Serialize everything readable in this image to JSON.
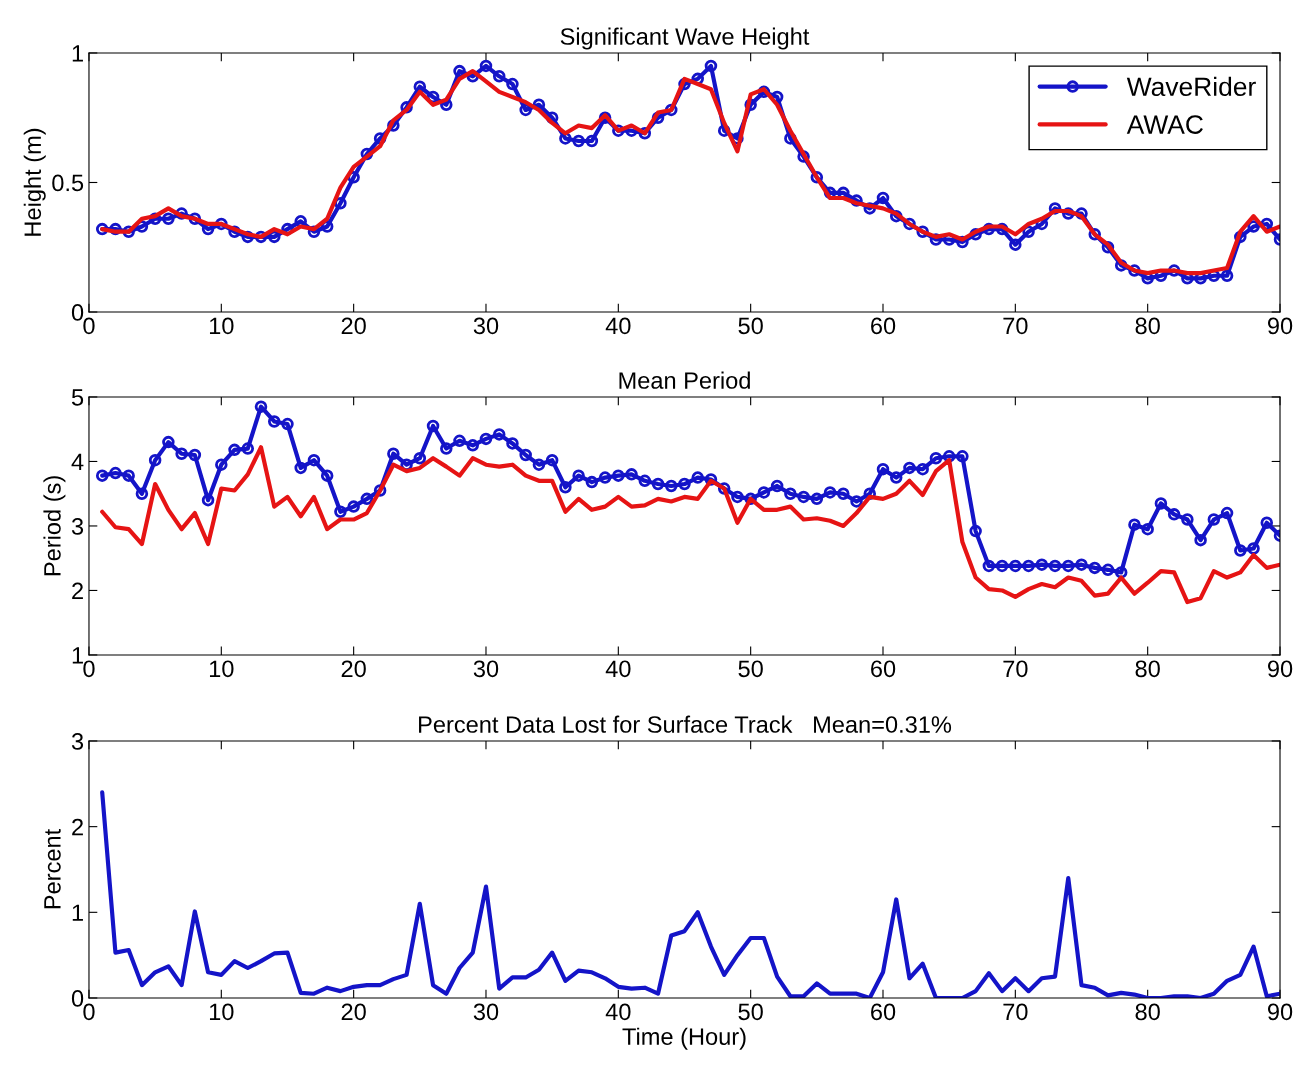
{
  "chart_data": [
    {
      "type": "line",
      "title": "Significant Wave Height",
      "ylabel": "Height (m)",
      "xlim": [
        0,
        90
      ],
      "xticks": [
        0,
        10,
        20,
        30,
        40,
        50,
        60,
        70,
        80,
        90
      ],
      "ylim": [
        0,
        1
      ],
      "yticks": [
        0,
        0.5,
        1
      ],
      "legend": "top right",
      "x": [
        1,
        2,
        3,
        4,
        5,
        6,
        7,
        8,
        9,
        10,
        11,
        12,
        13,
        14,
        15,
        16,
        17,
        18,
        19,
        20,
        21,
        22,
        23,
        24,
        25,
        26,
        27,
        28,
        29,
        30,
        31,
        32,
        33,
        34,
        35,
        36,
        37,
        38,
        39,
        40,
        41,
        42,
        43,
        44,
        45,
        46,
        47,
        48,
        49,
        50,
        51,
        52,
        53,
        54,
        55,
        56,
        57,
        58,
        59,
        60,
        61,
        62,
        63,
        64,
        65,
        66,
        67,
        68,
        69,
        70,
        71,
        72,
        73,
        74,
        75,
        76,
        77,
        78,
        79,
        80,
        81,
        82,
        83,
        84,
        85,
        86,
        87,
        88,
        89,
        90
      ],
      "series": [
        {
          "name": "WaveRider",
          "color": "#1414c8",
          "marker": "circle",
          "values": [
            0.32,
            0.32,
            0.31,
            0.33,
            0.36,
            0.36,
            0.38,
            0.36,
            0.32,
            0.34,
            0.31,
            0.29,
            0.29,
            0.29,
            0.32,
            0.35,
            0.31,
            0.33,
            0.42,
            0.52,
            0.61,
            0.67,
            0.72,
            0.79,
            0.87,
            0.83,
            0.8,
            0.93,
            0.91,
            0.95,
            0.91,
            0.88,
            0.78,
            0.8,
            0.75,
            0.67,
            0.66,
            0.66,
            0.75,
            0.7,
            0.7,
            0.69,
            0.75,
            0.78,
            0.88,
            0.9,
            0.95,
            0.7,
            0.67,
            0.8,
            0.85,
            0.83,
            0.67,
            0.6,
            0.52,
            0.46,
            0.46,
            0.43,
            0.4,
            0.44,
            0.37,
            0.34,
            0.31,
            0.28,
            0.28,
            0.27,
            0.3,
            0.32,
            0.32,
            0.26,
            0.31,
            0.34,
            0.4,
            0.38,
            0.38,
            0.3,
            0.25,
            0.18,
            0.16,
            0.13,
            0.14,
            0.16,
            0.13,
            0.13,
            0.14,
            0.14,
            0.29,
            0.33,
            0.34,
            0.28
          ]
        },
        {
          "name": "AWAC",
          "color": "#e61414",
          "marker": "none",
          "values": [
            0.32,
            0.31,
            0.31,
            0.36,
            0.37,
            0.4,
            0.37,
            0.36,
            0.34,
            0.34,
            0.32,
            0.3,
            0.29,
            0.32,
            0.3,
            0.33,
            0.32,
            0.36,
            0.48,
            0.56,
            0.6,
            0.64,
            0.74,
            0.78,
            0.85,
            0.8,
            0.82,
            0.9,
            0.93,
            0.89,
            0.85,
            0.83,
            0.81,
            0.78,
            0.73,
            0.69,
            0.72,
            0.71,
            0.76,
            0.7,
            0.72,
            0.69,
            0.77,
            0.78,
            0.9,
            0.88,
            0.86,
            0.73,
            0.62,
            0.84,
            0.86,
            0.8,
            0.7,
            0.61,
            0.52,
            0.44,
            0.44,
            0.42,
            0.41,
            0.4,
            0.38,
            0.34,
            0.31,
            0.29,
            0.3,
            0.28,
            0.31,
            0.33,
            0.33,
            0.3,
            0.34,
            0.36,
            0.39,
            0.39,
            0.37,
            0.3,
            0.26,
            0.19,
            0.16,
            0.15,
            0.16,
            0.16,
            0.15,
            0.15,
            0.16,
            0.17,
            0.31,
            0.37,
            0.31,
            0.33
          ]
        }
      ]
    },
    {
      "type": "line",
      "title": "Mean Period",
      "ylabel": "Period (s)",
      "xlim": [
        0,
        90
      ],
      "xticks": [
        0,
        10,
        20,
        30,
        40,
        50,
        60,
        70,
        80,
        90
      ],
      "ylim": [
        1,
        5
      ],
      "yticks": [
        1,
        2,
        3,
        4,
        5
      ],
      "x": [
        1,
        2,
        3,
        4,
        5,
        6,
        7,
        8,
        9,
        10,
        11,
        12,
        13,
        14,
        15,
        16,
        17,
        18,
        19,
        20,
        21,
        22,
        23,
        24,
        25,
        26,
        27,
        28,
        29,
        30,
        31,
        32,
        33,
        34,
        35,
        36,
        37,
        38,
        39,
        40,
        41,
        42,
        43,
        44,
        45,
        46,
        47,
        48,
        49,
        50,
        51,
        52,
        53,
        54,
        55,
        56,
        57,
        58,
        59,
        60,
        61,
        62,
        63,
        64,
        65,
        66,
        67,
        68,
        69,
        70,
        71,
        72,
        73,
        74,
        75,
        76,
        77,
        78,
        79,
        80,
        81,
        82,
        83,
        84,
        85,
        86,
        87,
        88,
        89,
        90
      ],
      "series": [
        {
          "color": "#1414c8",
          "marker": "circle",
          "values": [
            3.78,
            3.82,
            3.78,
            3.5,
            4.02,
            4.3,
            4.12,
            4.1,
            3.4,
            3.95,
            4.18,
            4.2,
            4.85,
            4.62,
            4.58,
            3.9,
            4.02,
            3.78,
            3.22,
            3.3,
            3.42,
            3.55,
            4.12,
            3.95,
            4.05,
            4.55,
            4.2,
            4.32,
            4.25,
            4.35,
            4.42,
            4.28,
            4.1,
            3.95,
            4.02,
            3.6,
            3.78,
            3.68,
            3.75,
            3.78,
            3.8,
            3.7,
            3.65,
            3.62,
            3.65,
            3.75,
            3.72,
            3.58,
            3.45,
            3.42,
            3.52,
            3.62,
            3.5,
            3.45,
            3.42,
            3.52,
            3.5,
            3.38,
            3.5,
            3.88,
            3.75,
            3.9,
            3.88,
            4.05,
            4.08,
            4.08,
            2.92,
            2.38,
            2.38,
            2.38,
            2.38,
            2.4,
            2.38,
            2.38,
            2.4,
            2.35,
            2.32,
            2.28,
            3.02,
            2.95,
            3.35,
            3.18,
            3.1,
            2.78,
            3.1,
            3.2,
            2.62,
            2.65,
            3.05,
            2.85
          ]
        },
        {
          "color": "#e61414",
          "marker": "none",
          "values": [
            3.22,
            2.98,
            2.95,
            2.72,
            3.65,
            3.25,
            2.95,
            3.2,
            2.72,
            3.58,
            3.55,
            3.8,
            4.22,
            3.3,
            3.45,
            3.15,
            3.45,
            2.95,
            3.1,
            3.1,
            3.2,
            3.55,
            3.95,
            3.85,
            3.9,
            4.05,
            3.92,
            3.78,
            4.05,
            3.95,
            3.92,
            3.95,
            3.78,
            3.7,
            3.7,
            3.22,
            3.42,
            3.25,
            3.3,
            3.45,
            3.3,
            3.32,
            3.42,
            3.38,
            3.45,
            3.42,
            3.7,
            3.58,
            3.05,
            3.42,
            3.25,
            3.25,
            3.3,
            3.1,
            3.12,
            3.08,
            3.0,
            3.2,
            3.45,
            3.42,
            3.5,
            3.7,
            3.48,
            3.85,
            4.02,
            2.75,
            2.2,
            2.02,
            2.0,
            1.9,
            2.02,
            2.1,
            2.05,
            2.2,
            2.15,
            1.92,
            1.95,
            2.2,
            1.95,
            2.12,
            2.3,
            2.28,
            1.82,
            1.88,
            2.3,
            2.2,
            2.28,
            2.55,
            2.35,
            2.4
          ]
        }
      ]
    },
    {
      "type": "line",
      "title": "Percent Data Lost for Surface Track   Mean=0.31%",
      "xlabel": "Time (Hour)",
      "ylabel": "Percent",
      "xlim": [
        0,
        90
      ],
      "xticks": [
        0,
        10,
        20,
        30,
        40,
        50,
        60,
        70,
        80,
        90
      ],
      "ylim": [
        0,
        3
      ],
      "yticks": [
        0,
        1,
        2,
        3
      ],
      "x": [
        1,
        2,
        3,
        4,
        5,
        6,
        7,
        8,
        9,
        10,
        11,
        12,
        13,
        14,
        15,
        16,
        17,
        18,
        19,
        20,
        21,
        22,
        23,
        24,
        25,
        26,
        27,
        28,
        29,
        30,
        31,
        32,
        33,
        34,
        35,
        36,
        37,
        38,
        39,
        40,
        41,
        42,
        43,
        44,
        45,
        46,
        47,
        48,
        49,
        50,
        51,
        52,
        53,
        54,
        55,
        56,
        57,
        58,
        59,
        60,
        61,
        62,
        63,
        64,
        65,
        66,
        67,
        68,
        69,
        70,
        71,
        72,
        73,
        74,
        75,
        76,
        77,
        78,
        79,
        80,
        81,
        82,
        83,
        84,
        85,
        86,
        87,
        88,
        89,
        90
      ],
      "series": [
        {
          "color": "#1414c8",
          "marker": "none",
          "values": [
            2.4,
            0.53,
            0.56,
            0.15,
            0.3,
            0.37,
            0.15,
            1.01,
            0.3,
            0.27,
            0.43,
            0.35,
            0.43,
            0.52,
            0.53,
            0.06,
            0.05,
            0.12,
            0.08,
            0.13,
            0.15,
            0.15,
            0.22,
            0.27,
            1.1,
            0.15,
            0.05,
            0.35,
            0.53,
            1.3,
            0.11,
            0.24,
            0.24,
            0.33,
            0.53,
            0.2,
            0.32,
            0.3,
            0.23,
            0.13,
            0.11,
            0.12,
            0.05,
            0.73,
            0.78,
            1.0,
            0.6,
            0.27,
            0.5,
            0.7,
            0.7,
            0.25,
            0.02,
            0.02,
            0.17,
            0.05,
            0.05,
            0.05,
            0.0,
            0.3,
            1.15,
            0.23,
            0.4,
            0.0,
            0.0,
            0.0,
            0.08,
            0.29,
            0.08,
            0.23,
            0.08,
            0.23,
            0.25,
            1.4,
            0.15,
            0.12,
            0.03,
            0.06,
            0.04,
            0.0,
            0.0,
            0.02,
            0.02,
            0.0,
            0.05,
            0.2,
            0.27,
            0.6,
            0.02,
            0.05
          ]
        }
      ]
    }
  ]
}
